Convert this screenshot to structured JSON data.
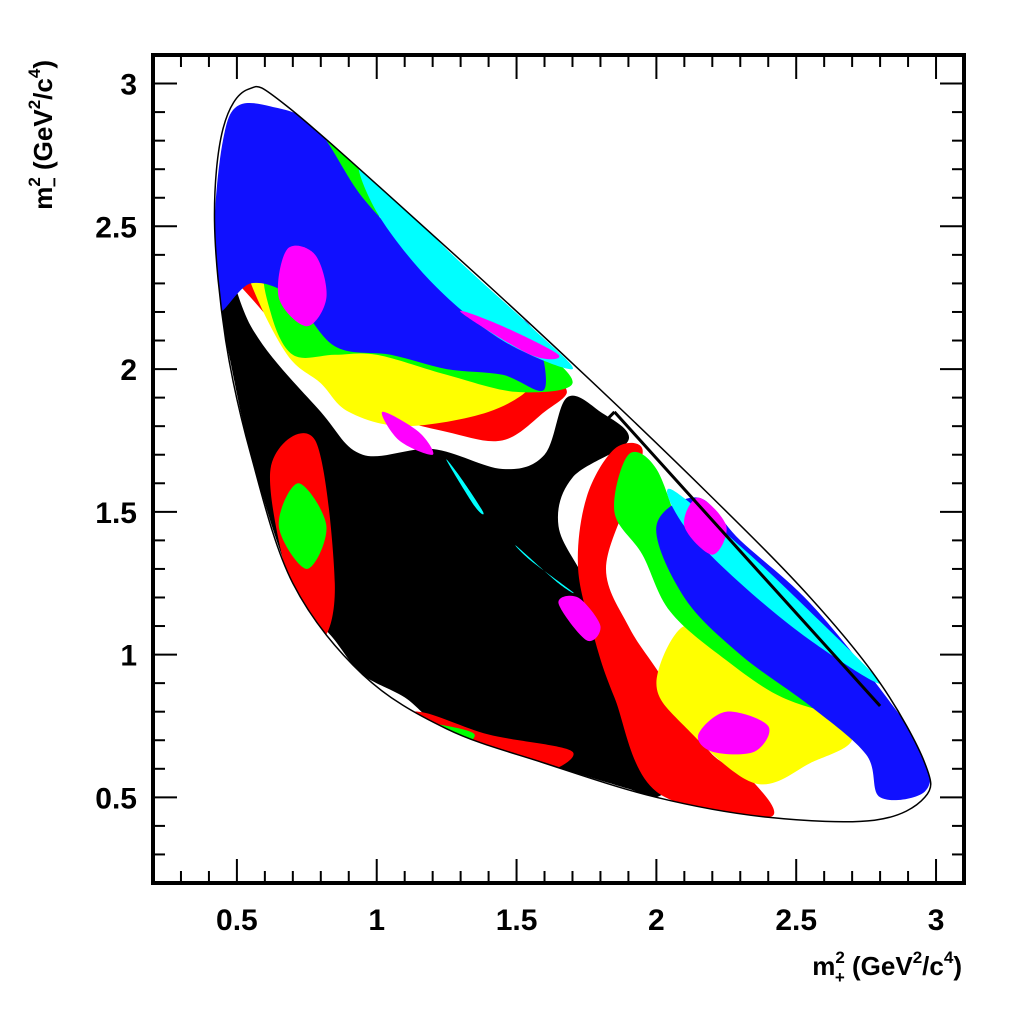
{
  "chart_data": {
    "type": "heatmap",
    "title": "",
    "xlabel": {
      "base": "m",
      "sub": "+",
      "sup": "2",
      "unit_pre": " (GeV",
      "unit_sup1": "2",
      "unit_mid": "/c",
      "unit_sup2": "4",
      "unit_post": ")"
    },
    "ylabel": {
      "base": "m",
      "sub": "−",
      "sup": "2",
      "unit_pre": " (GeV",
      "unit_sup1": "2",
      "unit_mid": "/c",
      "unit_sup2": "4",
      "unit_post": ")"
    },
    "xlim": [
      0.2,
      3.1
    ],
    "ylim": [
      0.2,
      3.1
    ],
    "xticks": [
      0.5,
      1,
      1.5,
      2,
      2.5,
      3
    ],
    "xtick_labels": [
      "0.5",
      "1",
      "1.5",
      "2",
      "2.5",
      "3"
    ],
    "yticks": [
      0.5,
      1,
      1.5,
      2,
      2.5,
      3
    ],
    "ytick_labels": [
      "0.5",
      "1",
      "1.5",
      "2",
      "2.5",
      "3"
    ],
    "grid": false,
    "colors": {
      "blue": "#1010ff",
      "green": "#00ff00",
      "yellow": "#ffff00",
      "red": "#ff0000",
      "black": "#000000",
      "cyan": "#00ffff",
      "magenta": "#ff00ff"
    },
    "boundary": [
      [
        0.42,
        2.52
      ],
      [
        0.45,
        2.84
      ],
      [
        0.54,
        2.98
      ],
      [
        0.68,
        2.92
      ],
      [
        1.2,
        2.47
      ],
      [
        1.7,
        2.02
      ],
      [
        2.2,
        1.55
      ],
      [
        2.55,
        1.2
      ],
      [
        2.8,
        0.9
      ],
      [
        2.96,
        0.62
      ],
      [
        2.96,
        0.5
      ],
      [
        2.78,
        0.42
      ],
      [
        2.4,
        0.43
      ],
      [
        2.0,
        0.5
      ],
      [
        1.6,
        0.62
      ],
      [
        1.25,
        0.74
      ],
      [
        0.95,
        0.93
      ],
      [
        0.7,
        1.25
      ],
      [
        0.55,
        1.7
      ],
      [
        0.46,
        2.1
      ]
    ],
    "divider_lines": [
      {
        "x": [
          0.95,
          1.85
        ],
        "y": [
          0.95,
          1.85
        ]
      },
      {
        "x": [
          1.85,
          2.8
        ],
        "y": [
          1.85,
          0.82
        ]
      }
    ],
    "regions": [
      {
        "color": "black",
        "points": [
          [
            0.42,
            2.52
          ],
          [
            0.42,
            2.2
          ],
          [
            0.46,
            2.1
          ],
          [
            0.55,
            1.7
          ],
          [
            0.7,
            1.25
          ],
          [
            0.85,
            1.05
          ],
          [
            0.95,
            0.93
          ],
          [
            1.1,
            0.85
          ],
          [
            1.25,
            0.74
          ],
          [
            1.6,
            0.62
          ],
          [
            1.9,
            0.53
          ],
          [
            2.0,
            0.5
          ],
          [
            2.1,
            0.6
          ],
          [
            1.95,
            0.8
          ],
          [
            1.85,
            1.0
          ],
          [
            1.75,
            1.25
          ],
          [
            1.65,
            1.45
          ],
          [
            1.7,
            1.62
          ],
          [
            1.9,
            1.75
          ],
          [
            1.8,
            1.85
          ],
          [
            1.68,
            1.9
          ],
          [
            1.6,
            1.7
          ],
          [
            1.45,
            1.65
          ],
          [
            1.2,
            1.72
          ],
          [
            0.95,
            1.7
          ],
          [
            0.8,
            1.85
          ],
          [
            0.55,
            2.15
          ]
        ]
      },
      {
        "color": "red",
        "points": [
          [
            0.42,
            2.52
          ],
          [
            0.42,
            2.4
          ],
          [
            0.55,
            2.25
          ],
          [
            0.8,
            1.98
          ],
          [
            1.0,
            1.85
          ],
          [
            1.25,
            1.78
          ],
          [
            1.45,
            1.75
          ],
          [
            1.6,
            1.85
          ],
          [
            1.68,
            1.92
          ],
          [
            1.6,
            1.97
          ],
          [
            1.4,
            1.92
          ],
          [
            1.15,
            1.95
          ],
          [
            0.9,
            2.1
          ],
          [
            0.6,
            2.35
          ]
        ]
      },
      {
        "color": "red",
        "points": [
          [
            0.78,
            1.75
          ],
          [
            0.62,
            1.65
          ],
          [
            0.7,
            1.2
          ],
          [
            0.8,
            1.05
          ],
          [
            0.85,
            1.25
          ]
        ]
      },
      {
        "color": "red",
        "points": [
          [
            1.15,
            0.8
          ],
          [
            1.4,
            0.72
          ],
          [
            1.7,
            0.66
          ],
          [
            1.55,
            0.58
          ],
          [
            1.25,
            0.66
          ],
          [
            1.05,
            0.75
          ]
        ]
      },
      {
        "color": "red",
        "points": [
          [
            1.85,
            0.85
          ],
          [
            2.0,
            0.52
          ],
          [
            2.4,
            0.43
          ],
          [
            2.35,
            0.55
          ],
          [
            2.2,
            0.65
          ],
          [
            2.1,
            0.8
          ],
          [
            2.0,
            0.95
          ],
          [
            1.9,
            1.1
          ],
          [
            1.82,
            1.3
          ],
          [
            1.9,
            1.55
          ],
          [
            1.95,
            1.72
          ],
          [
            1.85,
            1.72
          ],
          [
            1.75,
            1.55
          ],
          [
            1.72,
            1.3
          ],
          [
            1.78,
            1.05
          ]
        ]
      },
      {
        "color": "yellow",
        "points": [
          [
            0.55,
            2.3
          ],
          [
            0.48,
            2.55
          ],
          [
            0.62,
            2.72
          ],
          [
            0.75,
            2.55
          ],
          [
            0.85,
            2.35
          ],
          [
            1.05,
            2.1
          ],
          [
            1.35,
            2.0
          ],
          [
            1.55,
            1.95
          ],
          [
            1.4,
            1.85
          ],
          [
            1.1,
            1.8
          ],
          [
            0.9,
            1.85
          ],
          [
            0.8,
            1.95
          ],
          [
            0.68,
            2.05
          ]
        ]
      },
      {
        "color": "yellow",
        "points": [
          [
            2.1,
            1.1
          ],
          [
            2.0,
            0.9
          ],
          [
            2.1,
            0.75
          ],
          [
            2.35,
            0.55
          ],
          [
            2.55,
            0.62
          ],
          [
            2.7,
            0.72
          ],
          [
            2.45,
            0.9
          ],
          [
            2.25,
            1.0
          ]
        ]
      },
      {
        "color": "green",
        "points": [
          [
            0.7,
            2.05
          ],
          [
            0.62,
            2.2
          ],
          [
            0.6,
            2.4
          ],
          [
            0.72,
            2.7
          ],
          [
            0.82,
            2.8
          ],
          [
            0.95,
            2.7
          ],
          [
            1.05,
            2.45
          ],
          [
            1.25,
            2.3
          ],
          [
            1.55,
            2.1
          ],
          [
            1.7,
            1.95
          ],
          [
            1.5,
            1.92
          ],
          [
            1.25,
            1.98
          ],
          [
            1.0,
            2.05
          ],
          [
            0.85,
            2.05
          ]
        ]
      },
      {
        "color": "green",
        "points": [
          [
            0.75,
            1.3
          ],
          [
            0.65,
            1.45
          ],
          [
            0.72,
            1.6
          ],
          [
            0.82,
            1.45
          ]
        ]
      },
      {
        "color": "green",
        "points": [
          [
            1.05,
            0.78
          ],
          [
            1.2,
            0.76
          ],
          [
            1.35,
            0.72
          ],
          [
            1.25,
            0.66
          ],
          [
            1.1,
            0.72
          ]
        ]
      },
      {
        "color": "green",
        "points": [
          [
            1.9,
            1.7
          ],
          [
            2.0,
            1.65
          ],
          [
            2.1,
            1.4
          ],
          [
            2.2,
            1.25
          ],
          [
            2.45,
            1.0
          ],
          [
            2.55,
            0.92
          ],
          [
            2.65,
            0.8
          ],
          [
            2.45,
            0.85
          ],
          [
            2.25,
            0.98
          ],
          [
            2.05,
            1.15
          ],
          [
            1.95,
            1.35
          ],
          [
            1.85,
            1.5
          ]
        ]
      },
      {
        "color": "blue",
        "points": [
          [
            0.42,
            2.52
          ],
          [
            0.42,
            2.2
          ],
          [
            0.55,
            2.3
          ],
          [
            0.7,
            2.25
          ],
          [
            0.85,
            2.08
          ],
          [
            1.05,
            2.05
          ],
          [
            1.25,
            2.0
          ],
          [
            1.45,
            1.98
          ],
          [
            1.6,
            1.93
          ],
          [
            1.55,
            2.15
          ],
          [
            1.35,
            2.25
          ],
          [
            1.15,
            2.4
          ],
          [
            0.95,
            2.6
          ],
          [
            0.78,
            2.85
          ],
          [
            0.62,
            2.92
          ],
          [
            0.5,
            2.92
          ],
          [
            0.45,
            2.8
          ]
        ]
      },
      {
        "color": "blue",
        "points": [
          [
            2.0,
            1.45
          ],
          [
            2.1,
            1.2
          ],
          [
            2.3,
            1.0
          ],
          [
            2.55,
            0.82
          ],
          [
            2.75,
            0.65
          ],
          [
            2.8,
            0.5
          ],
          [
            2.96,
            0.52
          ],
          [
            2.96,
            0.65
          ],
          [
            2.8,
            0.88
          ],
          [
            2.55,
            1.18
          ],
          [
            2.3,
            1.4
          ],
          [
            2.15,
            1.55
          ]
        ]
      },
      {
        "color": "cyan",
        "points": [
          [
            0.95,
            2.72
          ],
          [
            1.25,
            2.42
          ],
          [
            1.55,
            2.15
          ],
          [
            1.7,
            2.0
          ],
          [
            1.45,
            2.1
          ],
          [
            1.2,
            2.3
          ],
          [
            1.0,
            2.55
          ]
        ]
      },
      {
        "color": "cyan",
        "points": [
          [
            2.05,
            1.58
          ],
          [
            2.3,
            1.38
          ],
          [
            2.55,
            1.15
          ],
          [
            2.8,
            0.9
          ],
          [
            2.55,
            1.05
          ],
          [
            2.3,
            1.25
          ],
          [
            2.1,
            1.45
          ]
        ]
      },
      {
        "color": "cyan",
        "points": [
          [
            0.72,
            2.25
          ],
          [
            0.7,
            2.35
          ],
          [
            0.74,
            2.4
          ],
          [
            0.76,
            2.3
          ]
        ]
      },
      {
        "color": "cyan",
        "points": [
          [
            1.25,
            1.68
          ],
          [
            1.35,
            1.52
          ],
          [
            1.38,
            1.5
          ],
          [
            1.3,
            1.62
          ]
        ]
      },
      {
        "color": "cyan",
        "points": [
          [
            1.5,
            1.38
          ],
          [
            1.65,
            1.25
          ],
          [
            1.7,
            1.22
          ],
          [
            1.55,
            1.33
          ]
        ]
      },
      {
        "color": "cyan",
        "points": [
          [
            2.22,
            0.72
          ],
          [
            2.28,
            0.7
          ],
          [
            2.3,
            0.73
          ],
          [
            2.24,
            0.75
          ]
        ]
      },
      {
        "color": "magenta",
        "points": [
          [
            0.65,
            2.25
          ],
          [
            0.68,
            2.42
          ],
          [
            0.78,
            2.4
          ],
          [
            0.82,
            2.25
          ],
          [
            0.75,
            2.15
          ]
        ]
      },
      {
        "color": "magenta",
        "points": [
          [
            1.3,
            2.2
          ],
          [
            1.55,
            2.05
          ],
          [
            1.65,
            2.05
          ],
          [
            1.45,
            2.15
          ]
        ]
      },
      {
        "color": "magenta",
        "points": [
          [
            1.02,
            1.85
          ],
          [
            1.15,
            1.78
          ],
          [
            1.2,
            1.7
          ],
          [
            1.08,
            1.75
          ]
        ]
      },
      {
        "color": "magenta",
        "points": [
          [
            2.15,
            0.72
          ],
          [
            2.25,
            0.8
          ],
          [
            2.4,
            0.75
          ],
          [
            2.35,
            0.66
          ],
          [
            2.2,
            0.66
          ]
        ]
      },
      {
        "color": "magenta",
        "points": [
          [
            1.65,
            1.18
          ],
          [
            1.75,
            1.05
          ],
          [
            1.8,
            1.1
          ],
          [
            1.72,
            1.2
          ]
        ]
      },
      {
        "color": "magenta",
        "points": [
          [
            2.15,
            1.55
          ],
          [
            2.25,
            1.45
          ],
          [
            2.2,
            1.35
          ],
          [
            2.1,
            1.45
          ]
        ]
      }
    ]
  }
}
